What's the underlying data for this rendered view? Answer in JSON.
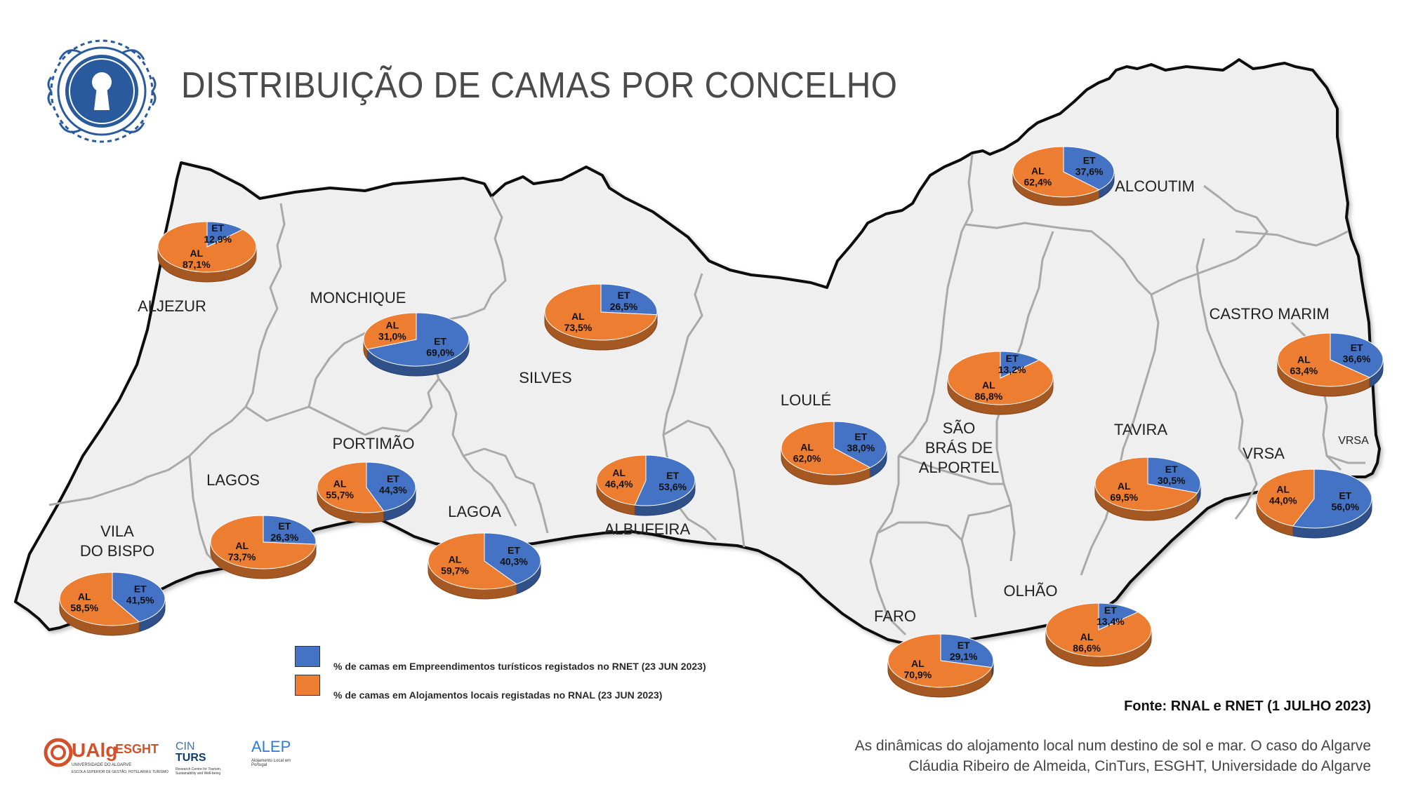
{
  "title": "DISTRIBUIÇÃO DE CAMAS POR CONCELHO",
  "colors": {
    "et": "#4472c4",
    "al": "#ed7d31",
    "map_fill": "#efefef",
    "coast": "#111111",
    "border": "#a9a9a9"
  },
  "legend": [
    {
      "key": "et",
      "label": "% de camas em Empreendimentos turísticos registados no RNET (23 JUN 2023)"
    },
    {
      "key": "al",
      "label": "% de camas em Alojamentos locais registadas no RNAL (23 JUN 2023)"
    }
  ],
  "source": "Fonte: RNAL e RNET (1 JULHO 2023)",
  "credits": [
    "As dinâmicas do alojamento local num destino de sol e mar. O caso do Algarve",
    "Cláudia Ribeiro de Almeida, CinTurs, ESGHT, Universidade do Algarve"
  ],
  "logos": {
    "ualg_main": "UAlg",
    "ualg_esght": "ESGHT",
    "ualg_sub1": "UNIVERSIDADE DO ALGARVE",
    "ualg_sub2": "ESCOLA SUPERIOR DE GESTÃO, HOTELARIA E TURISMO",
    "cinturs_top": "CIN",
    "cinturs_bottom": "TURS",
    "cinturs_sub": "Research Centre for Tourism, Sustainability and Well-being",
    "alep": "ALEP",
    "alep_sub": "Alojamento Local em Portugal"
  },
  "chart_data": {
    "type": "pie",
    "series_labels": {
      "et": "ET",
      "al": "AL"
    },
    "municipalities": [
      {
        "name": "ALJEZUR",
        "et": "12,9%",
        "al": "87,1%",
        "et_value": 12.9,
        "al_value": 87.1
      },
      {
        "name": "MONCHIQUE",
        "et": "69,0%",
        "al": "31,0%",
        "et_value": 69.0,
        "al_value": 31.0
      },
      {
        "name": "SILVES",
        "et": "26,5%",
        "al": "73,5%",
        "et_value": 26.5,
        "al_value": 73.5
      },
      {
        "name": "ALCOUTIM",
        "et": "37,6%",
        "al": "62,4%",
        "et_value": 37.6,
        "al_value": 62.4
      },
      {
        "name": "CASTRO MARIM",
        "et": "36,6%",
        "al": "63,4%",
        "et_value": 36.6,
        "al_value": 63.4
      },
      {
        "name": "SÃO BRÁS DE ALPORTEL",
        "et": "13,2%",
        "al": "86,8%",
        "et_value": 13.2,
        "al_value": 86.8
      },
      {
        "name": "LOULÉ",
        "et": "38,0%",
        "al": "62,0%",
        "et_value": 38.0,
        "al_value": 62.0
      },
      {
        "name": "TAVIRA",
        "et": "30,5%",
        "al": "69,5%",
        "et_value": 30.5,
        "al_value": 69.5
      },
      {
        "name": "VRSA",
        "et": "56,0%",
        "al": "44,0%",
        "et_value": 56.0,
        "al_value": 44.0
      },
      {
        "name": "PORTIMÃO",
        "et": "44,3%",
        "al": "55,7%",
        "et_value": 44.3,
        "al_value": 55.7
      },
      {
        "name": "ALBUFEIRA",
        "et": "53,6%",
        "al": "46,4%",
        "et_value": 53.6,
        "al_value": 46.4
      },
      {
        "name": "LAGOS",
        "et": "26,3%",
        "al": "73,7%",
        "et_value": 26.3,
        "al_value": 73.7
      },
      {
        "name": "LAGOA",
        "et": "40,3%",
        "al": "59,7%",
        "et_value": 40.3,
        "al_value": 59.7
      },
      {
        "name": "VILA DO BISPO",
        "et": "41,5%",
        "al": "58,5%",
        "et_value": 41.5,
        "al_value": 58.5
      },
      {
        "name": "FARO",
        "et": "29,1%",
        "al": "70,9%",
        "et_value": 29.1,
        "al_value": 70.9
      },
      {
        "name": "OLHÃO",
        "et": "13,4%",
        "al": "86,6%",
        "et_value": 13.4,
        "al_value": 86.6
      }
    ],
    "region_labels": {
      "aljezur": "ALJEZUR",
      "monchique": "MONCHIQUE",
      "silves": "SILVES",
      "alcoutim": "ALCOUTIM",
      "castro_marim": "CASTRO MARIM",
      "loule": "LOULÉ",
      "sbrás_1": "SÃO",
      "sbrás_2": "BRÁS DE",
      "sbrás_3": "ALPORTEL",
      "tavira": "TAVIRA",
      "vrsa": "VRSA",
      "vrsa_small": "VRSA",
      "portimao": "PORTIMÃO",
      "lagos": "LAGOS",
      "lagoa": "LAGOA",
      "albufeira": "ALBUFEIRA",
      "vila_do_bispo_1": "VILA",
      "vila_do_bispo_2": "DO  BISPO",
      "faro": "FARO",
      "olhao": "OLHÃO"
    }
  }
}
